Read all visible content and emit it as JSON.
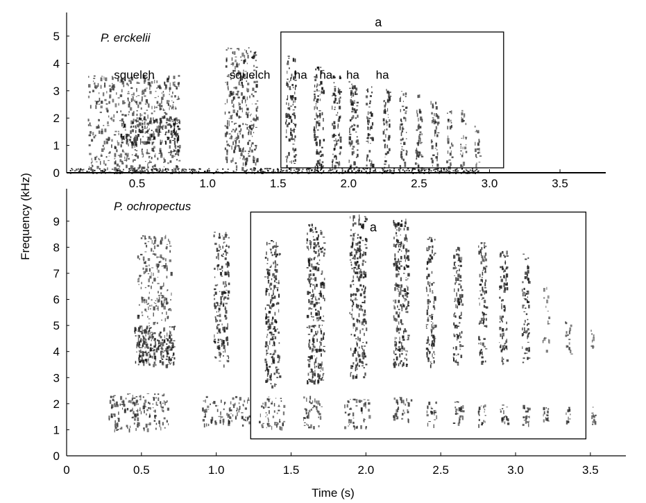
{
  "figure": {
    "ylabel": "Frequency (kHz)",
    "xlabel": "Time (s)"
  },
  "chart_data": [
    {
      "type": "heatmap",
      "species": "P. erckelii",
      "ylim": [
        0,
        5
      ],
      "yticks": [
        "0",
        "1",
        "2",
        "3",
        "4",
        "5"
      ],
      "xlim": [
        0,
        3.8
      ],
      "xticks": [
        "0.5",
        "1.0",
        "1.5",
        "2.0",
        "2.5",
        "3.0",
        "3.5"
      ],
      "annotations": [
        {
          "text": "squelch",
          "x": 0.48,
          "y": 3.75
        },
        {
          "text": "squelch",
          "x": 1.3,
          "y": 3.75
        },
        {
          "text": "ha",
          "x": 1.66,
          "y": 3.75
        },
        {
          "text": "ha",
          "x": 1.84,
          "y": 3.75
        },
        {
          "text": "ha",
          "x": 2.03,
          "y": 3.75
        },
        {
          "text": "ha",
          "x": 2.24,
          "y": 3.75
        }
      ],
      "box": {
        "label": "a",
        "x0": 1.52,
        "x1": 3.1,
        "y0": 0.18,
        "y1": 5.15
      },
      "segments": [
        {
          "t0": 0.15,
          "t1": 0.8,
          "f0": 0.1,
          "f1": 3.6,
          "density": 0.45
        },
        {
          "t0": 0.38,
          "t1": 0.8,
          "f0": 1.1,
          "f1": 2.1,
          "density": 0.8
        },
        {
          "t0": 1.12,
          "t1": 1.35,
          "f0": 0.2,
          "f1": 4.6,
          "density": 0.55
        },
        {
          "t0": 1.55,
          "t1": 1.62,
          "f0": 0.2,
          "f1": 4.3,
          "density": 0.75
        },
        {
          "t0": 1.75,
          "t1": 1.82,
          "f0": 0.2,
          "f1": 3.9,
          "density": 0.75
        },
        {
          "t0": 1.88,
          "t1": 1.94,
          "f0": 0.2,
          "f1": 3.6,
          "density": 0.75
        },
        {
          "t0": 2.0,
          "t1": 2.06,
          "f0": 0.2,
          "f1": 3.4,
          "density": 0.7
        },
        {
          "t0": 2.12,
          "t1": 2.17,
          "f0": 0.2,
          "f1": 3.2,
          "density": 0.7
        },
        {
          "t0": 2.24,
          "t1": 2.29,
          "f0": 0.2,
          "f1": 3.1,
          "density": 0.65
        },
        {
          "t0": 2.36,
          "t1": 2.41,
          "f0": 0.2,
          "f1": 3.0,
          "density": 0.6
        },
        {
          "t0": 2.47,
          "t1": 2.52,
          "f0": 0.2,
          "f1": 2.9,
          "density": 0.6
        },
        {
          "t0": 2.58,
          "t1": 2.63,
          "f0": 0.2,
          "f1": 2.7,
          "density": 0.55
        },
        {
          "t0": 2.69,
          "t1": 2.73,
          "f0": 0.2,
          "f1": 2.4,
          "density": 0.5
        },
        {
          "t0": 2.79,
          "t1": 2.83,
          "f0": 0.2,
          "f1": 2.3,
          "density": 0.5
        },
        {
          "t0": 2.89,
          "t1": 2.93,
          "f0": 0.2,
          "f1": 1.8,
          "density": 0.45
        }
      ]
    },
    {
      "type": "heatmap",
      "species": "P. ochropectus",
      "ylim": [
        0,
        9.5
      ],
      "yticks": [
        "0",
        "1",
        "2",
        "3",
        "4",
        "5",
        "6",
        "7",
        "8",
        "9"
      ],
      "xlim": [
        0,
        3.7
      ],
      "xticks": [
        "0",
        "0.5",
        "1.0",
        "1.5",
        "2.0",
        "2.5",
        "3.0",
        "3.5"
      ],
      "box": {
        "label": "a",
        "x0": 1.23,
        "x1": 3.47,
        "y0": 0.65,
        "y1": 9.35
      },
      "segments": [
        {
          "t0": 0.28,
          "t1": 0.68,
          "f0": 1.0,
          "f1": 2.4,
          "density": 0.55
        },
        {
          "t0": 0.47,
          "t1": 0.7,
          "f0": 3.5,
          "f1": 8.5,
          "density": 0.45
        },
        {
          "t0": 0.45,
          "t1": 0.72,
          "f0": 3.5,
          "f1": 5.0,
          "density": 0.75
        },
        {
          "t0": 0.9,
          "t1": 1.22,
          "f0": 1.2,
          "f1": 2.3,
          "density": 0.5
        },
        {
          "t0": 0.98,
          "t1": 1.08,
          "f0": 3.5,
          "f1": 8.6,
          "density": 0.65
        },
        {
          "t0": 1.28,
          "t1": 1.45,
          "f0": 1.1,
          "f1": 2.3,
          "density": 0.5
        },
        {
          "t0": 1.32,
          "t1": 1.42,
          "f0": 2.7,
          "f1": 8.3,
          "density": 0.7
        },
        {
          "t0": 1.58,
          "t1": 1.7,
          "f0": 1.1,
          "f1": 2.3,
          "density": 0.5
        },
        {
          "t0": 1.6,
          "t1": 1.72,
          "f0": 2.8,
          "f1": 8.9,
          "density": 0.7
        },
        {
          "t0": 1.85,
          "t1": 2.02,
          "f0": 1.1,
          "f1": 2.2,
          "density": 0.5
        },
        {
          "t0": 1.89,
          "t1": 2.0,
          "f0": 3.0,
          "f1": 9.3,
          "density": 0.7
        },
        {
          "t0": 2.18,
          "t1": 2.3,
          "f0": 1.4,
          "f1": 2.3,
          "density": 0.55
        },
        {
          "t0": 2.18,
          "t1": 2.28,
          "f0": 3.5,
          "f1": 9.1,
          "density": 0.75
        },
        {
          "t0": 2.4,
          "t1": 2.47,
          "f0": 1.2,
          "f1": 2.1,
          "density": 0.55
        },
        {
          "t0": 2.4,
          "t1": 2.46,
          "f0": 3.5,
          "f1": 8.4,
          "density": 0.7
        },
        {
          "t0": 2.58,
          "t1": 2.65,
          "f0": 1.2,
          "f1": 2.1,
          "density": 0.55
        },
        {
          "t0": 2.58,
          "t1": 2.64,
          "f0": 3.5,
          "f1": 8.2,
          "density": 0.7
        },
        {
          "t0": 2.74,
          "t1": 2.8,
          "f0": 1.2,
          "f1": 2.0,
          "density": 0.55
        },
        {
          "t0": 2.75,
          "t1": 2.8,
          "f0": 3.5,
          "f1": 8.2,
          "density": 0.7
        },
        {
          "t0": 2.89,
          "t1": 2.95,
          "f0": 1.2,
          "f1": 2.0,
          "density": 0.55
        },
        {
          "t0": 2.89,
          "t1": 2.94,
          "f0": 3.5,
          "f1": 7.9,
          "density": 0.7
        },
        {
          "t0": 3.04,
          "t1": 3.1,
          "f0": 1.2,
          "f1": 2.0,
          "density": 0.55
        },
        {
          "t0": 3.04,
          "t1": 3.09,
          "f0": 3.5,
          "f1": 7.8,
          "density": 0.65
        },
        {
          "t0": 3.18,
          "t1": 3.23,
          "f0": 1.3,
          "f1": 1.9,
          "density": 0.5
        },
        {
          "t0": 3.18,
          "t1": 3.22,
          "f0": 3.6,
          "f1": 6.5,
          "density": 0.2
        },
        {
          "t0": 3.33,
          "t1": 3.37,
          "f0": 1.3,
          "f1": 1.9,
          "density": 0.5
        },
        {
          "t0": 3.33,
          "t1": 3.37,
          "f0": 3.8,
          "f1": 5.2,
          "density": 0.35
        },
        {
          "t0": 3.5,
          "t1": 3.53,
          "f0": 1.2,
          "f1": 1.9,
          "density": 0.45
        },
        {
          "t0": 3.5,
          "t1": 3.52,
          "f0": 4.2,
          "f1": 4.9,
          "density": 0.3
        }
      ]
    }
  ]
}
